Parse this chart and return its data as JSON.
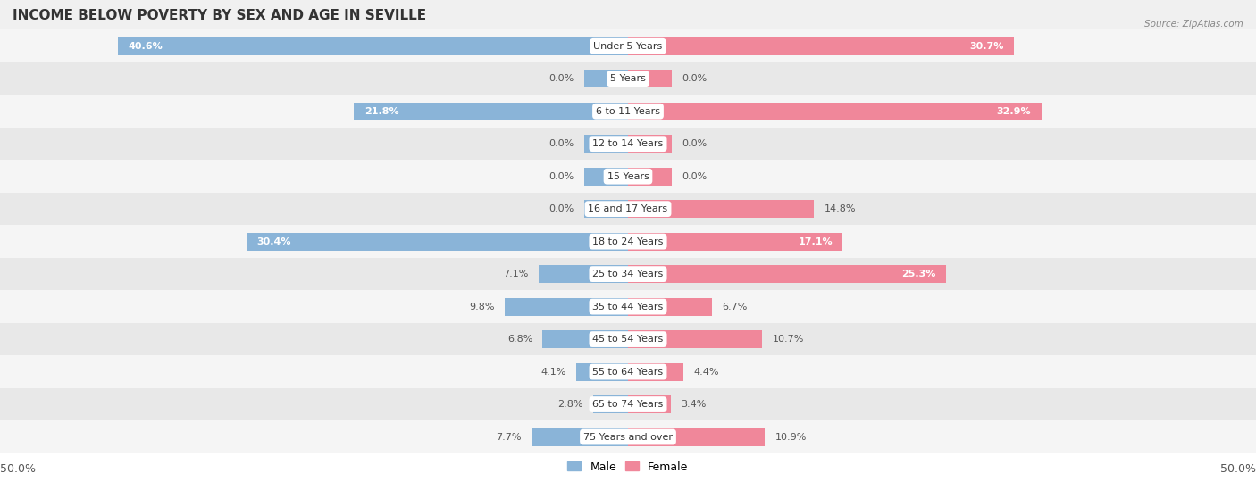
{
  "title": "INCOME BELOW POVERTY BY SEX AND AGE IN SEVILLE",
  "source": "Source: ZipAtlas.com",
  "categories": [
    "Under 5 Years",
    "5 Years",
    "6 to 11 Years",
    "12 to 14 Years",
    "15 Years",
    "16 and 17 Years",
    "18 to 24 Years",
    "25 to 34 Years",
    "35 to 44 Years",
    "45 to 54 Years",
    "55 to 64 Years",
    "65 to 74 Years",
    "75 Years and over"
  ],
  "male_values": [
    40.6,
    0.0,
    21.8,
    0.0,
    0.0,
    0.0,
    30.4,
    7.1,
    9.8,
    6.8,
    4.1,
    2.8,
    7.7
  ],
  "female_values": [
    30.7,
    0.0,
    32.9,
    0.0,
    0.0,
    14.8,
    17.1,
    25.3,
    6.7,
    10.7,
    4.4,
    3.4,
    10.9
  ],
  "male_color": "#8ab4d8",
  "female_color": "#f0879a",
  "axis_max": 50.0,
  "background_color": "#f0f0f0",
  "row_bg_colors": [
    "#f5f5f5",
    "#e8e8e8"
  ],
  "bottom_bg": "#ffffff",
  "title_fontsize": 11,
  "label_fontsize": 8,
  "cat_fontsize": 8,
  "tick_fontsize": 9,
  "bar_height": 0.55,
  "zero_stub": 3.5
}
